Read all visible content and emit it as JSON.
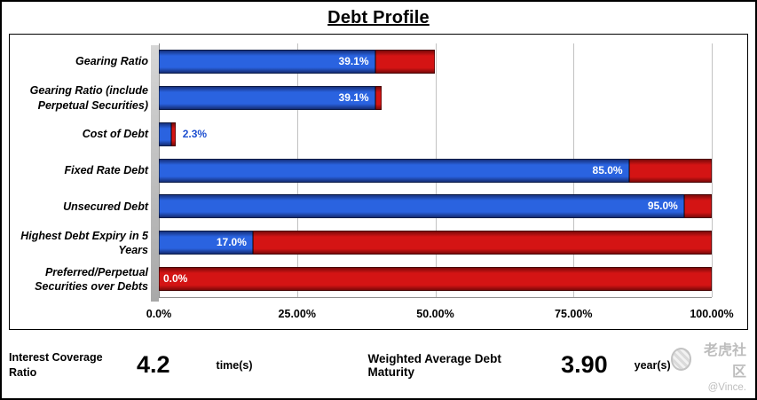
{
  "title": "Debt Profile",
  "chart_data": {
    "type": "bar",
    "orientation": "horizontal",
    "title": "Debt Profile",
    "categories": [
      "Gearing Ratio",
      "Gearing Ratio (include Perpetual Securities)",
      "Cost of Debt",
      "Fixed Rate Debt",
      "Unsecured Debt",
      "Highest Debt Expiry in 5 Years",
      "Preferred/Perpetual Securities over Debts"
    ],
    "series": [
      {
        "name": "value",
        "color": "#2A63E0",
        "values": [
          39.1,
          39.1,
          2.3,
          85.0,
          95.0,
          17.0,
          0.0
        ]
      },
      {
        "name": "remainder",
        "color": "#D41414",
        "values": [
          10.9,
          1.2,
          0.7,
          15.0,
          5.0,
          83.0,
          100.0
        ]
      }
    ],
    "bar_totals": [
      50.0,
      40.3,
      3.0,
      100.0,
      100.0,
      100.0,
      100.0
    ],
    "value_labels": [
      "39.1%",
      "39.1%",
      "2.3%",
      "85.0%",
      "95.0%",
      "17.0%",
      "0.0%"
    ],
    "label_styles": [
      "inside-blue",
      "inside-blue",
      "outside",
      "inside-blue",
      "inside-blue",
      "inside-blue",
      "inside-red-start"
    ],
    "x_ticks": [
      "0.0%",
      "25.00%",
      "50.00%",
      "75.00%",
      "100.00%"
    ],
    "x_tick_positions": [
      0,
      25,
      50,
      75,
      100
    ],
    "xlim": [
      0,
      100
    ],
    "grid": true,
    "legend": false
  },
  "footer": {
    "icr_label": "Interest Coverage Ratio",
    "icr_value": "4.2",
    "icr_unit": "time(s)",
    "wadm_label": "Weighted Average Debt Maturity",
    "wadm_value": "3.90",
    "wadm_unit": "year(s)"
  },
  "watermark": {
    "community": "老虎社区",
    "handle": "@Vince."
  },
  "colors": {
    "bar_blue": "#2A63E0",
    "bar_red": "#D41414",
    "gridline": "#C2C2C2"
  }
}
